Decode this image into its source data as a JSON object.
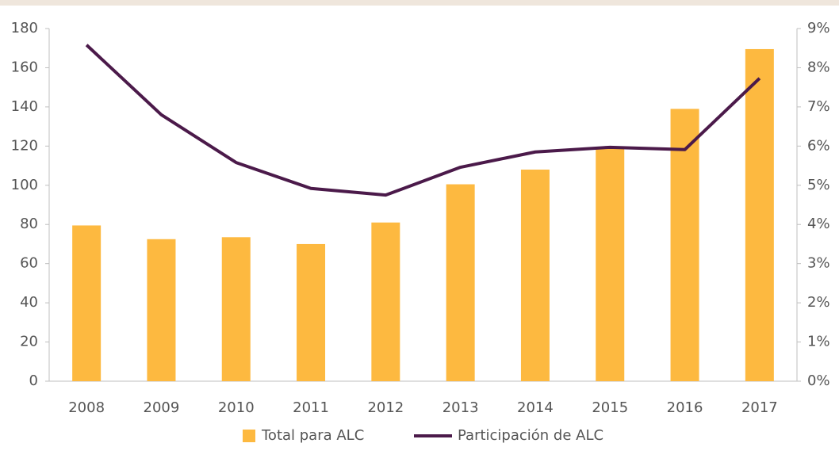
{
  "chart_data": {
    "type": "bar",
    "categories": [
      "2008",
      "2009",
      "2010",
      "2011",
      "2012",
      "2013",
      "2014",
      "2015",
      "2016",
      "2017"
    ],
    "series": [
      {
        "name": "Total para ALC",
        "type": "bar",
        "color": "#fdb940",
        "values": [
          79.5,
          72.5,
          73.5,
          70,
          81,
          100.5,
          108,
          119,
          139,
          169.5
        ]
      },
      {
        "name": "Participación de ALC",
        "type": "line",
        "axis": "y2",
        "color": "#4b1a4a",
        "values": [
          8.58,
          6.8,
          5.58,
          4.92,
          4.75,
          5.46,
          5.85,
          5.97,
          5.91,
          7.73
        ]
      }
    ],
    "ylim": [
      0,
      180
    ],
    "yticks": [
      0,
      20,
      40,
      60,
      80,
      100,
      120,
      140,
      160,
      180
    ],
    "y2lim": [
      0,
      9
    ],
    "y2ticks": [
      {
        "value": 0,
        "label": "0%"
      },
      {
        "value": 1,
        "label": "1%"
      },
      {
        "value": 2,
        "label": "2%"
      },
      {
        "value": 3,
        "label": "3%"
      },
      {
        "value": 4,
        "label": "4%"
      },
      {
        "value": 5,
        "label": "5%"
      },
      {
        "value": 6,
        "label": "6%"
      },
      {
        "value": 7,
        "label": "7%"
      },
      {
        "value": 8,
        "label": "8%"
      },
      {
        "value": 9,
        "label": "9%"
      }
    ],
    "legend": "bottom"
  }
}
